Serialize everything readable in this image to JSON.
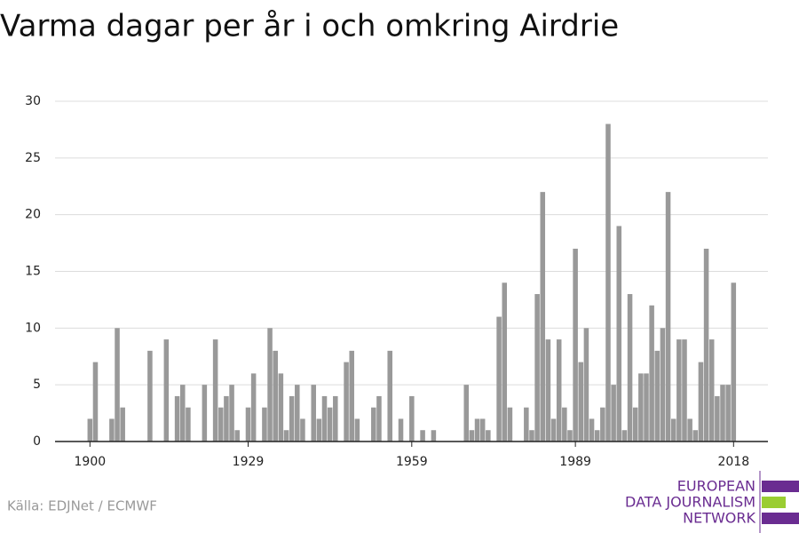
{
  "chart_data": {
    "type": "bar",
    "title": "Varma dagar per år i och omkring Airdrie",
    "source": "Källa: EDJNet / ECMWF",
    "logo": [
      "EUROPEAN",
      "DATA JOURNALISM",
      "NETWORK"
    ],
    "color": "#999999",
    "x": [
      1900,
      1901,
      1902,
      1903,
      1904,
      1905,
      1906,
      1907,
      1908,
      1909,
      1910,
      1911,
      1912,
      1913,
      1914,
      1915,
      1916,
      1917,
      1918,
      1919,
      1920,
      1921,
      1922,
      1923,
      1924,
      1925,
      1926,
      1927,
      1928,
      1929,
      1930,
      1931,
      1932,
      1933,
      1934,
      1935,
      1936,
      1937,
      1938,
      1939,
      1940,
      1941,
      1942,
      1943,
      1944,
      1945,
      1946,
      1947,
      1948,
      1949,
      1950,
      1951,
      1952,
      1953,
      1954,
      1955,
      1956,
      1957,
      1958,
      1959,
      1960,
      1961,
      1962,
      1963,
      1964,
      1965,
      1966,
      1967,
      1968,
      1969,
      1970,
      1971,
      1972,
      1973,
      1974,
      1975,
      1976,
      1977,
      1978,
      1979,
      1980,
      1981,
      1982,
      1983,
      1984,
      1985,
      1986,
      1987,
      1988,
      1989,
      1990,
      1991,
      1992,
      1993,
      1994,
      1995,
      1996,
      1997,
      1998,
      1999,
      2000,
      2001,
      2002,
      2003,
      2004,
      2005,
      2006,
      2007,
      2008,
      2009,
      2010,
      2011,
      2012,
      2013,
      2014,
      2015,
      2016,
      2017,
      2018
    ],
    "values": [
      2,
      7,
      0,
      0,
      2,
      10,
      3,
      0,
      0,
      0,
      0,
      8,
      0,
      0,
      9,
      0,
      4,
      5,
      3,
      0,
      0,
      5,
      0,
      9,
      3,
      4,
      5,
      1,
      0,
      3,
      6,
      0,
      3,
      10,
      8,
      6,
      1,
      4,
      5,
      2,
      0,
      5,
      2,
      4,
      3,
      4,
      0,
      7,
      8,
      2,
      0,
      0,
      3,
      4,
      0,
      8,
      0,
      2,
      0,
      4,
      0,
      1,
      0,
      1,
      0,
      0,
      0,
      0,
      0,
      5,
      1,
      2,
      2,
      1,
      0,
      11,
      14,
      3,
      0,
      0,
      3,
      1,
      13,
      22,
      9,
      2,
      9,
      3,
      1,
      17,
      7,
      10,
      2,
      1,
      3,
      28,
      5,
      19,
      1,
      13,
      3,
      6,
      6,
      12,
      8,
      10,
      22,
      2,
      9,
      9,
      2,
      1,
      7,
      17,
      9,
      4,
      5,
      5,
      14
    ],
    "xlim": [
      1893.6,
      2024.3
    ],
    "xticks": [
      1900,
      1929,
      1959,
      1989,
      2018
    ],
    "ylim": [
      0,
      30
    ],
    "yticks": [
      0,
      5,
      10,
      15,
      20,
      25,
      30
    ],
    "grid": true
  }
}
